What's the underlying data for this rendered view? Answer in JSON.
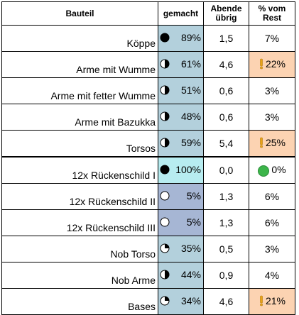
{
  "header": {
    "part": "Bauteil",
    "made": "gemacht",
    "remaining": "Abende übrig",
    "rest": "% vom Rest"
  },
  "rows": [
    {
      "part": "Köppe",
      "made": "89%",
      "fraction": 0.89,
      "remaining": "1,5",
      "rest": "7%",
      "status": "none",
      "group_end": false
    },
    {
      "part": "Arme mit Wumme",
      "made": "61%",
      "fraction": 0.61,
      "remaining": "4,6",
      "rest": "22%",
      "status": "warning",
      "group_end": false
    },
    {
      "part": "Arme mit fetter Wumme",
      "made": "51%",
      "fraction": 0.51,
      "remaining": "0,6",
      "rest": "3%",
      "status": "none",
      "group_end": false
    },
    {
      "part": "Arme mit Bazukka",
      "made": "48%",
      "fraction": 0.48,
      "remaining": "0,6",
      "rest": "3%",
      "status": "none",
      "group_end": false
    },
    {
      "part": "Torsos",
      "made": "59%",
      "fraction": 0.59,
      "remaining": "5,4",
      "rest": "25%",
      "status": "warning",
      "group_end": true
    },
    {
      "part": "12x Rückenschild  I",
      "made": "100%",
      "fraction": 1.0,
      "remaining": "0,0",
      "rest": "0%",
      "status": "ok",
      "group_end": false
    },
    {
      "part": "12x Rückenschild  II",
      "made": "5%",
      "fraction": 0.05,
      "remaining": "1,3",
      "rest": "6%",
      "status": "none",
      "group_end": false
    },
    {
      "part": "12x Rückenschild  III",
      "made": "5%",
      "fraction": 0.05,
      "remaining": "1,3",
      "rest": "6%",
      "status": "none",
      "group_end": false
    },
    {
      "part": "Nob Torso",
      "made": "35%",
      "fraction": 0.35,
      "remaining": "0,5",
      "rest": "3%",
      "status": "none",
      "group_end": false
    },
    {
      "part": "Nob Arme",
      "made": "44%",
      "fraction": 0.44,
      "remaining": "0,9",
      "rest": "4%",
      "status": "none",
      "group_end": false
    },
    {
      "part": "Bases",
      "made": "34%",
      "fraction": 0.34,
      "remaining": "4,6",
      "rest": "21%",
      "status": "warning",
      "group_end": false
    }
  ],
  "icons": {
    "progress": "quarter-pie-icon",
    "warning": "exclamation-flag-icon",
    "ok": "green-circle-icon"
  },
  "colors": {
    "made_default": "#b3d0dc",
    "made_done": "#b7ecf0",
    "made_low": "#a6b6d4",
    "warning_bg": "#fcd3b2",
    "warning_icon": "#e8a317",
    "ok_icon": "#3cb54a"
  }
}
